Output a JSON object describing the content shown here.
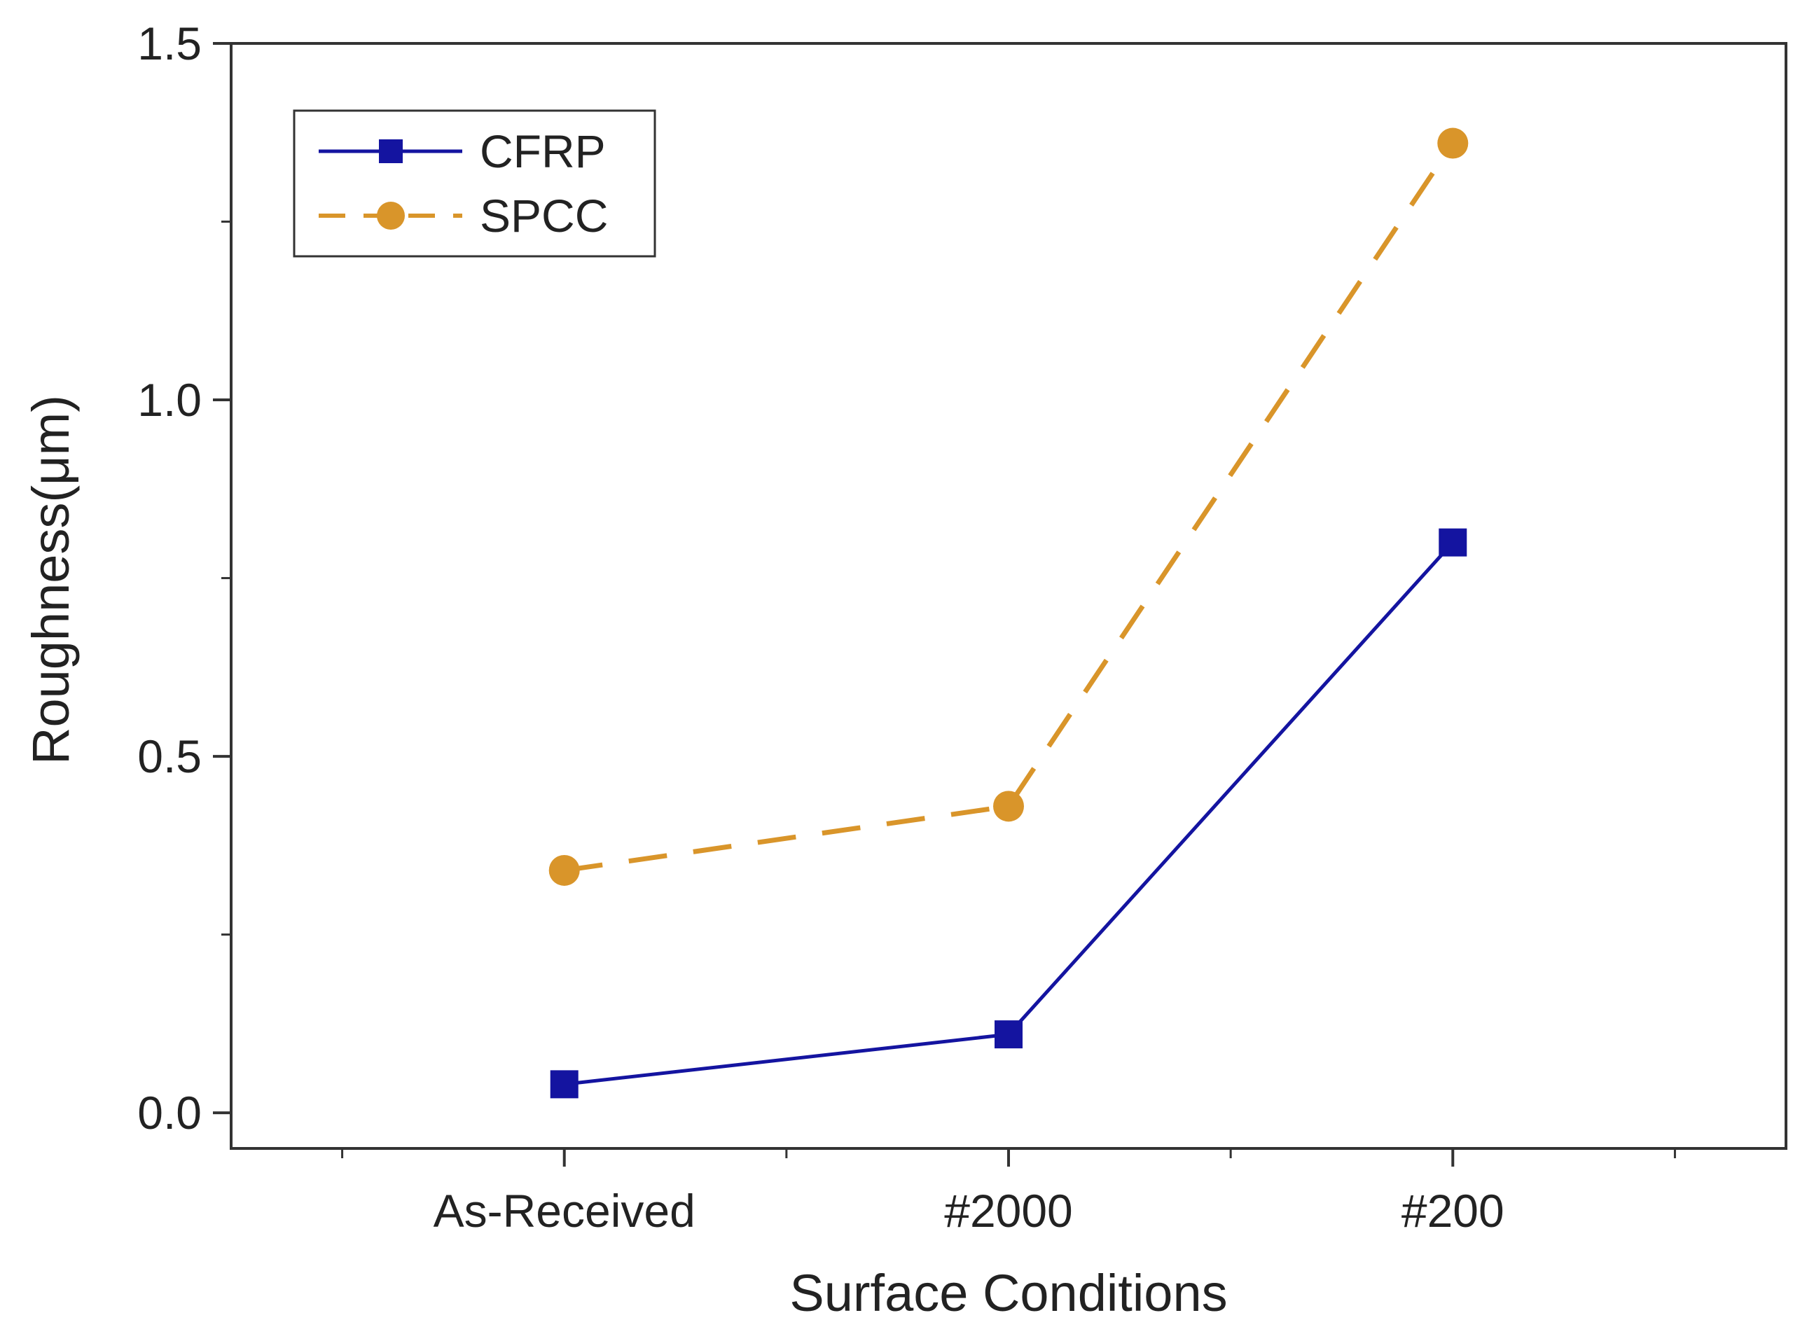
{
  "chart_data": {
    "type": "line",
    "title": "",
    "xlabel": "Surface Conditions",
    "ylabel": "Roughness(μm)",
    "categories": [
      "As-Received",
      "#2000",
      "#200"
    ],
    "ylim": [
      -0.05,
      1.5
    ],
    "yticks": [
      0.0,
      0.5,
      1.0,
      1.5
    ],
    "ytick_labels": [
      "0.0",
      "0.5",
      "1.0",
      "1.5"
    ],
    "grid": false,
    "legend_position": "top-left",
    "series": [
      {
        "name": "CFRP",
        "values": [
          0.04,
          0.11,
          0.8
        ],
        "color": "#1414a0",
        "marker": "square",
        "line": "solid"
      },
      {
        "name": "SPCC",
        "values": [
          0.34,
          0.43,
          1.36
        ],
        "color": "#d9952a",
        "marker": "circle",
        "line": "dashed"
      }
    ]
  }
}
